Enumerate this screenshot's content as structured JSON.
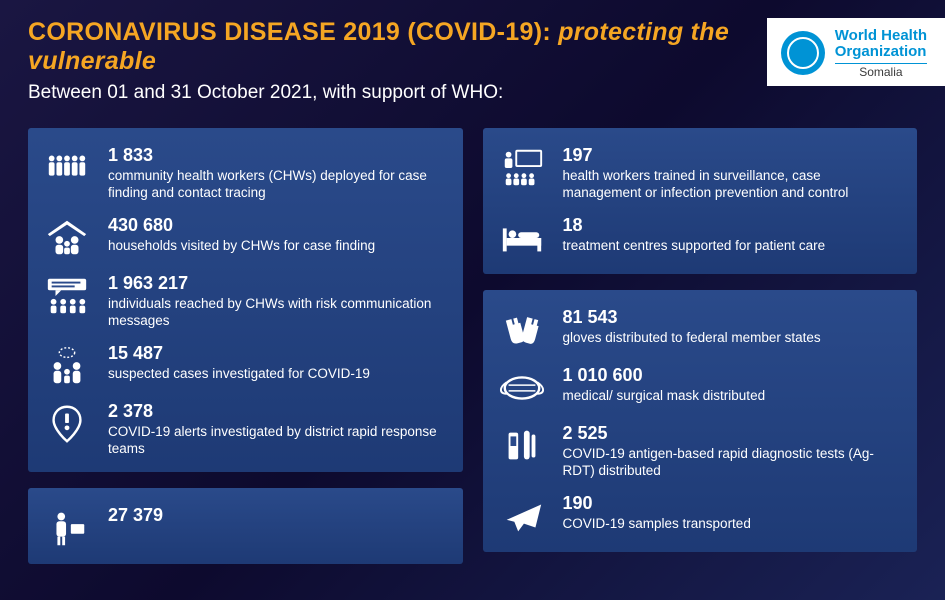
{
  "header": {
    "title_part1": "CORONAVIRUS DISEASE 2019 (COVID-19): ",
    "title_part2": "protecting the vulnerable",
    "subtitle": "Between 01 and 31 October 2021, with support of WHO:"
  },
  "logo": {
    "org_line1": "World Health",
    "org_line2": "Organization",
    "country": "Somalia"
  },
  "colors": {
    "accent": "#f5a623",
    "who_blue": "#0093d5",
    "panel_top": "#2a4a8a",
    "panel_bottom": "#1e3a75",
    "bg_start": "#1a1642",
    "bg_end": "#1a2255"
  },
  "left": {
    "panel1": [
      {
        "icon": "people-group",
        "num": "1 833",
        "desc": "community health workers (CHWs) deployed for case finding and contact tracing"
      },
      {
        "icon": "house-family",
        "num": "430 680",
        "desc": "households visited by CHWs for case finding"
      },
      {
        "icon": "speech-crowd",
        "num": "1 963 217",
        "desc": "individuals reached by CHWs with risk communication messages"
      },
      {
        "icon": "people-talk",
        "num": "15 487",
        "desc": "suspected cases investigated for COVID-19"
      },
      {
        "icon": "alert-pin",
        "num": "2 378",
        "desc": "COVID-19 alerts investigated by district rapid response teams"
      }
    ],
    "panel2": [
      {
        "icon": "person-test",
        "num": "27 379",
        "desc": ""
      }
    ]
  },
  "right": {
    "panel1": [
      {
        "icon": "training-board",
        "num": "197",
        "desc": "health workers trained in surveillance, case management or infection prevention and control"
      },
      {
        "icon": "hospital-bed",
        "num": "18",
        "desc": "treatment centres supported for patient care"
      }
    ],
    "panel2": [
      {
        "icon": "gloves",
        "num": "81 543",
        "desc": "gloves distributed to federal member states"
      },
      {
        "icon": "mask",
        "num": "1 010 600",
        "desc": "medical/ surgical mask distributed"
      },
      {
        "icon": "test-kit",
        "num": "2 525",
        "desc": "COVID-19 antigen-based rapid diagnostic tests (Ag-RDT) distributed"
      },
      {
        "icon": "airplane",
        "num": "190",
        "desc": "COVID-19 samples transported"
      }
    ]
  }
}
